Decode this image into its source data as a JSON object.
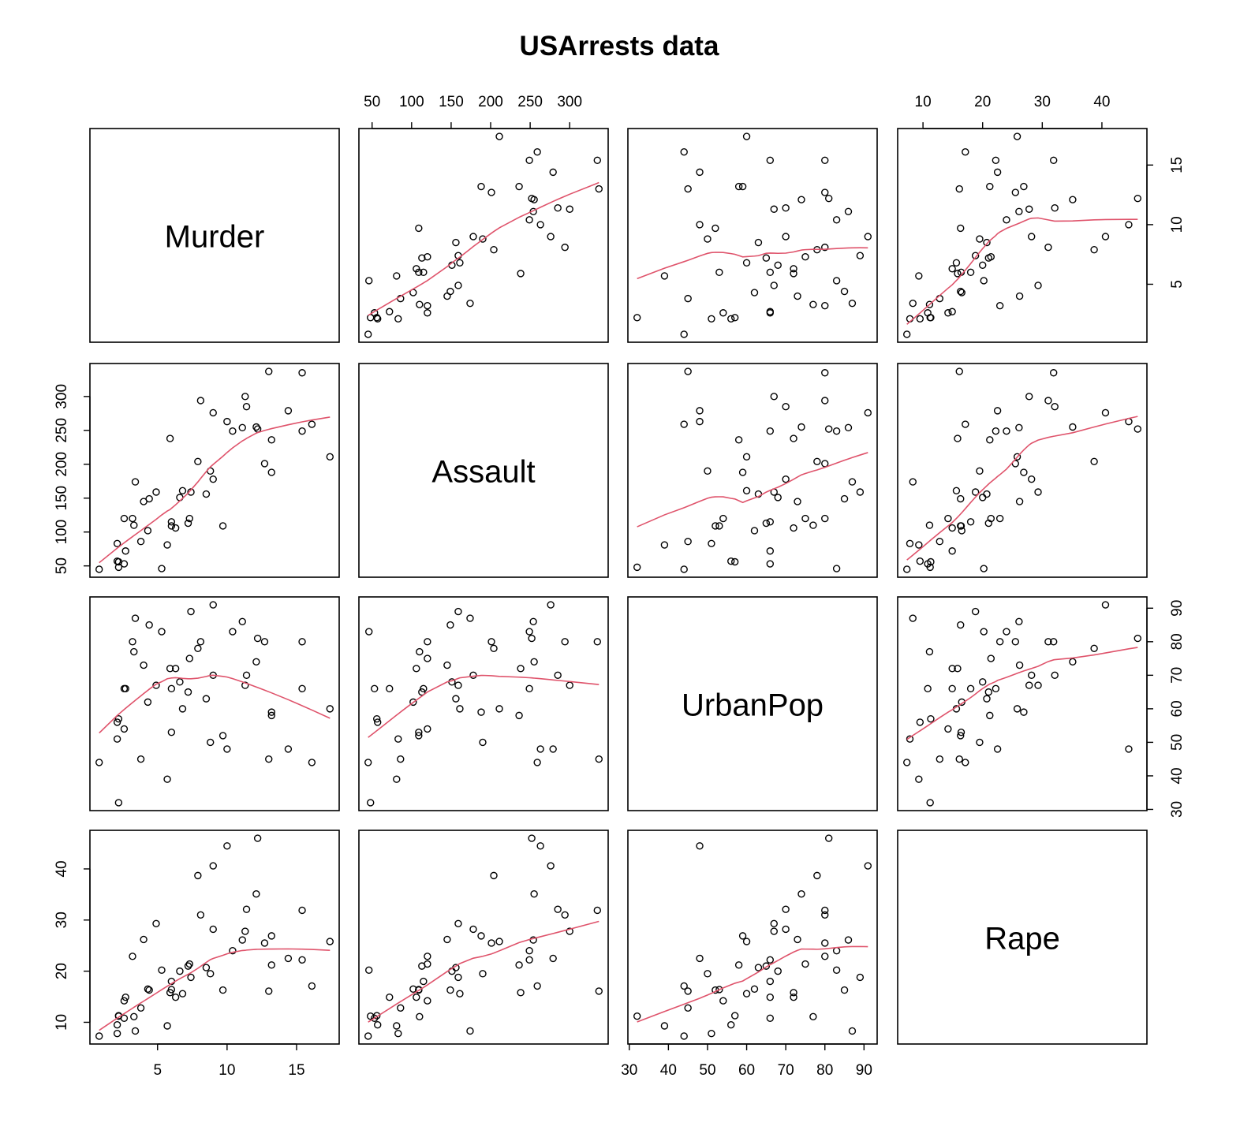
{
  "chart_data": {
    "type": "scatter_matrix",
    "title": "USArrests data",
    "point_color": "#000000",
    "smooth_color": "#DF536B",
    "smooth": "lowess",
    "variables": [
      {
        "name": "Murder",
        "lim": [
          0.136,
          18.064
        ],
        "ticks": [
          5,
          10,
          15
        ],
        "values": [
          13.2,
          10.0,
          8.1,
          8.8,
          9.0,
          7.9,
          3.3,
          5.9,
          15.4,
          17.4,
          5.3,
          2.6,
          10.4,
          7.2,
          2.2,
          6.0,
          9.7,
          15.4,
          2.1,
          11.3,
          4.4,
          12.1,
          2.7,
          16.1,
          9.0,
          6.0,
          4.3,
          12.2,
          2.1,
          7.4,
          11.4,
          11.1,
          13.0,
          0.8,
          7.3,
          6.6,
          4.9,
          6.3,
          3.4,
          14.4,
          3.8,
          13.2,
          12.7,
          3.2,
          2.2,
          8.5,
          4.0,
          5.7,
          2.6,
          6.8
        ]
      },
      {
        "name": "Assault",
        "lim": [
          33.32,
          348.68
        ],
        "ticks": [
          50,
          100,
          150,
          200,
          250,
          300
        ],
        "values": [
          236,
          263,
          294,
          190,
          276,
          204,
          110,
          238,
          335,
          211,
          46,
          120,
          249,
          113,
          56,
          115,
          109,
          249,
          83,
          300,
          149,
          255,
          72,
          259,
          178,
          109,
          102,
          252,
          57,
          159,
          285,
          254,
          337,
          45,
          120,
          151,
          159,
          106,
          174,
          279,
          86,
          188,
          201,
          120,
          48,
          156,
          145,
          81,
          53,
          161
        ]
      },
      {
        "name": "UrbanPop",
        "lim": [
          29.64,
          93.36
        ],
        "ticks": [
          30,
          40,
          50,
          60,
          70,
          80,
          90
        ],
        "values": [
          58,
          48,
          80,
          50,
          91,
          78,
          77,
          72,
          80,
          60,
          83,
          54,
          83,
          65,
          57,
          66,
          52,
          66,
          51,
          67,
          85,
          74,
          66,
          44,
          70,
          53,
          62,
          81,
          56,
          89,
          70,
          86,
          45,
          44,
          75,
          68,
          67,
          72,
          87,
          48,
          45,
          59,
          80,
          80,
          32,
          63,
          73,
          39,
          66,
          60
        ]
      },
      {
        "name": "Rape",
        "lim": [
          5.752,
          47.548
        ],
        "ticks": [
          10,
          20,
          30,
          40
        ],
        "values": [
          21.2,
          44.5,
          31.0,
          19.5,
          40.6,
          38.7,
          11.1,
          15.8,
          31.9,
          25.8,
          20.2,
          14.2,
          24.0,
          21.0,
          11.3,
          18.0,
          16.3,
          22.2,
          7.8,
          27.8,
          16.3,
          35.1,
          14.9,
          17.1,
          28.2,
          16.4,
          16.5,
          46.0,
          9.5,
          18.8,
          32.1,
          26.1,
          16.1,
          7.3,
          21.4,
          20.0,
          29.3,
          14.9,
          8.3,
          22.5,
          12.8,
          26.9,
          25.5,
          22.9,
          11.2,
          20.7,
          26.2,
          9.3,
          10.8,
          15.6
        ]
      }
    ]
  }
}
